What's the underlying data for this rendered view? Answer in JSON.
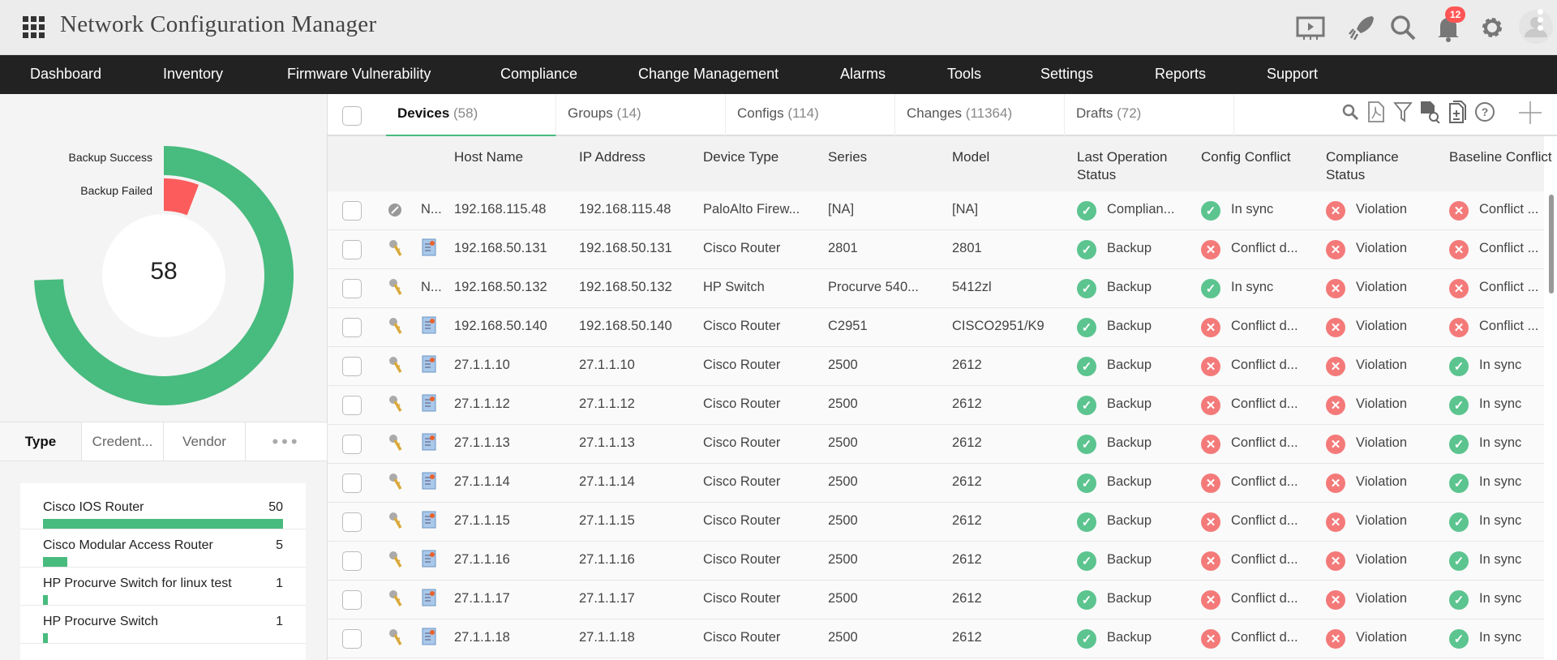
{
  "header": {
    "title": "Network Configuration Manager",
    "notification_count": "12",
    "icons": [
      "apps-grid-icon",
      "presentation-icon",
      "rocket-icon",
      "search-icon",
      "bell-icon",
      "gear-icon",
      "user-avatar-icon"
    ]
  },
  "nav": {
    "items": [
      "Dashboard",
      "Inventory",
      "Firmware Vulnerability",
      "Compliance",
      "Change Management",
      "Alarms",
      "Tools",
      "Settings",
      "Reports",
      "Support"
    ]
  },
  "backup_chart": {
    "legend": [
      "Backup Success",
      "Backup Failed"
    ],
    "total": "58",
    "colors": {
      "success": "#48bb7e",
      "failed": "#fc5c5c"
    }
  },
  "left_tabs": [
    "Type",
    "Credent...",
    "Vendor"
  ],
  "type_list": [
    {
      "name": "Cisco IOS Router",
      "count": 50
    },
    {
      "name": "Cisco Modular Access Router",
      "count": 5
    },
    {
      "name": "HP Procurve Switch for linux test",
      "count": 1
    },
    {
      "name": "HP Procurve Switch",
      "count": 1
    }
  ],
  "tabs": [
    {
      "label": "Devices",
      "count": "(58)"
    },
    {
      "label": "Groups",
      "count": "(14)"
    },
    {
      "label": "Configs",
      "count": "(114)"
    },
    {
      "label": "Changes",
      "count": "(11364)"
    },
    {
      "label": "Drafts",
      "count": "(72)"
    }
  ],
  "toolbar_icons": [
    "search-icon",
    "pdf-icon",
    "filter-icon",
    "search-document-icon",
    "compare-document-icon",
    "help-icon",
    "add-icon"
  ],
  "columns": [
    "Host Name",
    "IP Address",
    "Device Type",
    "Series",
    "Model",
    "Last Operation Status",
    "Config Conflict",
    "Compliance Status",
    "Baseline Conflict"
  ],
  "rows": [
    {
      "i1": "disabled",
      "i2": "N...",
      "host": "192.168.115.48",
      "ip": "192.168.115.48",
      "type": "PaloAlto Firew...",
      "series": "[NA]",
      "model": "[NA]",
      "last": [
        "ok",
        "Complian..."
      ],
      "conf": [
        "ok",
        "In sync"
      ],
      "comp": [
        "bad",
        "Violation"
      ],
      "base": [
        "bad",
        "Conflict ..."
      ]
    },
    {
      "i1": "key",
      "i2": "cert",
      "host": "192.168.50.131",
      "ip": "192.168.50.131",
      "type": "Cisco Router",
      "series": "2801",
      "model": "2801",
      "last": [
        "ok",
        "Backup"
      ],
      "conf": [
        "bad",
        "Conflict d..."
      ],
      "comp": [
        "bad",
        "Violation"
      ],
      "base": [
        "bad",
        "Conflict ..."
      ]
    },
    {
      "i1": "key",
      "i2": "N...",
      "host": "192.168.50.132",
      "ip": "192.168.50.132",
      "type": "HP Switch",
      "series": "Procurve 540...",
      "model": "5412zl",
      "last": [
        "ok",
        "Backup"
      ],
      "conf": [
        "ok",
        "In sync"
      ],
      "comp": [
        "bad",
        "Violation"
      ],
      "base": [
        "bad",
        "Conflict ..."
      ]
    },
    {
      "i1": "key",
      "i2": "cert",
      "host": "192.168.50.140",
      "ip": "192.168.50.140",
      "type": "Cisco Router",
      "series": "C2951",
      "model": "CISCO2951/K9",
      "last": [
        "ok",
        "Backup"
      ],
      "conf": [
        "bad",
        "Conflict d..."
      ],
      "comp": [
        "bad",
        "Violation"
      ],
      "base": [
        "bad",
        "Conflict ..."
      ]
    },
    {
      "i1": "key",
      "i2": "cert",
      "host": "27.1.1.10",
      "ip": "27.1.1.10",
      "type": "Cisco Router",
      "series": "2500",
      "model": "2612",
      "last": [
        "ok",
        "Backup"
      ],
      "conf": [
        "bad",
        "Conflict d..."
      ],
      "comp": [
        "bad",
        "Violation"
      ],
      "base": [
        "ok",
        "In sync"
      ]
    },
    {
      "i1": "key",
      "i2": "cert",
      "host": "27.1.1.12",
      "ip": "27.1.1.12",
      "type": "Cisco Router",
      "series": "2500",
      "model": "2612",
      "last": [
        "ok",
        "Backup"
      ],
      "conf": [
        "bad",
        "Conflict d..."
      ],
      "comp": [
        "bad",
        "Violation"
      ],
      "base": [
        "ok",
        "In sync"
      ]
    },
    {
      "i1": "key",
      "i2": "cert",
      "host": "27.1.1.13",
      "ip": "27.1.1.13",
      "type": "Cisco Router",
      "series": "2500",
      "model": "2612",
      "last": [
        "ok",
        "Backup"
      ],
      "conf": [
        "bad",
        "Conflict d..."
      ],
      "comp": [
        "bad",
        "Violation"
      ],
      "base": [
        "ok",
        "In sync"
      ]
    },
    {
      "i1": "key",
      "i2": "cert",
      "host": "27.1.1.14",
      "ip": "27.1.1.14",
      "type": "Cisco Router",
      "series": "2500",
      "model": "2612",
      "last": [
        "ok",
        "Backup"
      ],
      "conf": [
        "bad",
        "Conflict d..."
      ],
      "comp": [
        "bad",
        "Violation"
      ],
      "base": [
        "ok",
        "In sync"
      ]
    },
    {
      "i1": "key",
      "i2": "cert",
      "host": "27.1.1.15",
      "ip": "27.1.1.15",
      "type": "Cisco Router",
      "series": "2500",
      "model": "2612",
      "last": [
        "ok",
        "Backup"
      ],
      "conf": [
        "bad",
        "Conflict d..."
      ],
      "comp": [
        "bad",
        "Violation"
      ],
      "base": [
        "ok",
        "In sync"
      ]
    },
    {
      "i1": "key",
      "i2": "cert",
      "host": "27.1.1.16",
      "ip": "27.1.1.16",
      "type": "Cisco Router",
      "series": "2500",
      "model": "2612",
      "last": [
        "ok",
        "Backup"
      ],
      "conf": [
        "bad",
        "Conflict d..."
      ],
      "comp": [
        "bad",
        "Violation"
      ],
      "base": [
        "ok",
        "In sync"
      ]
    },
    {
      "i1": "key",
      "i2": "cert",
      "host": "27.1.1.17",
      "ip": "27.1.1.17",
      "type": "Cisco Router",
      "series": "2500",
      "model": "2612",
      "last": [
        "ok",
        "Backup"
      ],
      "conf": [
        "bad",
        "Conflict d..."
      ],
      "comp": [
        "bad",
        "Violation"
      ],
      "base": [
        "ok",
        "In sync"
      ]
    },
    {
      "i1": "key",
      "i2": "cert",
      "host": "27.1.1.18",
      "ip": "27.1.1.18",
      "type": "Cisco Router",
      "series": "2500",
      "model": "2612",
      "last": [
        "ok",
        "Backup"
      ],
      "conf": [
        "bad",
        "Conflict d..."
      ],
      "comp": [
        "bad",
        "Violation"
      ],
      "base": [
        "ok",
        "In sync"
      ]
    }
  ]
}
